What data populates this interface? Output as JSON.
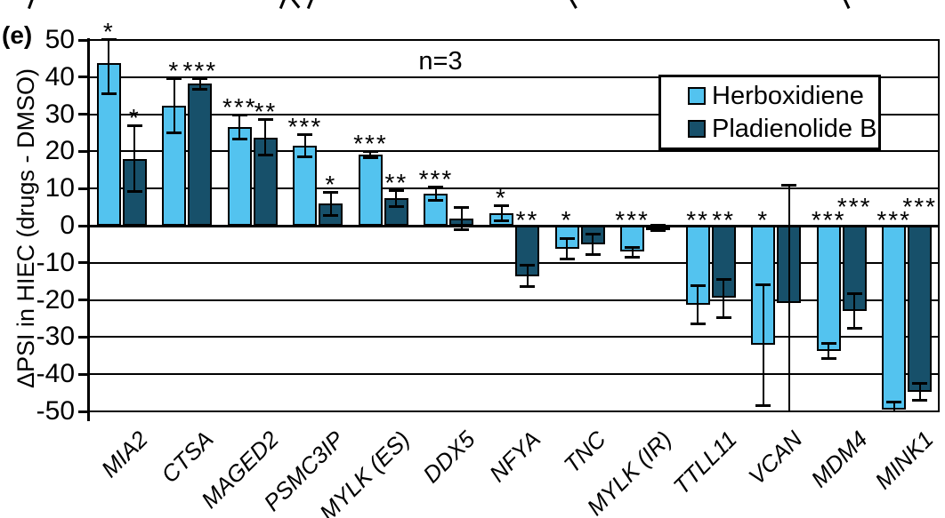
{
  "panel_label": "(e)",
  "annotation": "n=3",
  "y_axis": {
    "title": "ΔPSI in HIEC (drugs - DMSO)",
    "ticks": [
      50,
      40,
      30,
      20,
      10,
      0,
      -10,
      -20,
      -30,
      -40,
      -50
    ]
  },
  "legend": {
    "position": "top-right",
    "items": [
      {
        "label": "Herboxidiene",
        "color": "#53C3EF"
      },
      {
        "label": "Pladienolide B",
        "color": "#17506A"
      }
    ]
  },
  "chart_data": {
    "type": "bar",
    "title": "",
    "xlabel": "",
    "ylabel": "ΔPSI in HIEC (drugs - DMSO)",
    "ylim": [
      -50,
      50
    ],
    "grid": true,
    "legend_position": "top-right",
    "annotation": "n=3",
    "categories": [
      "MIA2",
      "CTSA",
      "MAGED2",
      "PSMC3IP",
      "MYLK (ES)",
      "DDX5",
      "NFYA",
      "TNC",
      "MYLK (IR)",
      "TTLL11",
      "VCAN",
      "MDM4",
      "MINK1"
    ],
    "series": [
      {
        "name": "Herboxidiene",
        "color": "#53C3EF",
        "values": [
          43.7,
          32.3,
          26.6,
          21.5,
          19.2,
          8.7,
          3.4,
          -6.2,
          -7.0,
          -21.2,
          -32.0,
          -33.8,
          -49.5
        ],
        "error_hi": [
          50.3,
          39.7,
          29.9,
          24.6,
          20.1,
          10.6,
          5.6,
          -3.4,
          -5.8,
          -16.0,
          -15.8,
          -31.6,
          -47.3
        ],
        "error_lo": [
          35.5,
          25.0,
          23.2,
          18.5,
          18.2,
          6.8,
          1.2,
          -9.0,
          -8.5,
          -26.6,
          -48.6,
          -35.8,
          -50.0
        ],
        "stars": [
          "*",
          "*",
          "***",
          "***",
          "***",
          "***",
          "*",
          "*",
          "***",
          "**",
          "*",
          "***",
          "***"
        ],
        "star_raised": [
          0,
          0,
          0,
          0,
          0,
          0,
          0,
          0,
          0,
          0,
          0,
          0,
          0
        ]
      },
      {
        "name": "Pladienolide B",
        "color": "#17506A",
        "values": [
          18.0,
          38.3,
          23.8,
          5.9,
          7.3,
          2.0,
          -13.6,
          -5.0,
          -0.6,
          -19.4,
          -20.9,
          -23.0,
          -44.8
        ],
        "error_hi": [
          27.0,
          39.8,
          28.7,
          9.2,
          9.5,
          5.0,
          -10.6,
          -2.2,
          0.2,
          -14.4,
          10.9,
          -18.2,
          -42.4
        ],
        "error_lo": [
          9.0,
          36.6,
          18.8,
          2.7,
          5.1,
          -1.2,
          -16.6,
          -7.8,
          -1.4,
          -24.9,
          -50.0,
          -27.8,
          -47.2
        ],
        "stars": [
          "*",
          "***",
          "**",
          "*",
          "**",
          "",
          "**",
          "",
          "",
          "**",
          "",
          "***",
          "***"
        ],
        "star_raised": [
          0,
          0,
          0,
          0,
          0,
          0,
          0,
          0,
          0,
          0,
          0,
          1,
          1
        ]
      }
    ]
  },
  "top_fragments": [
    {
      "x": 33,
      "r": 20
    },
    {
      "x": 316,
      "r": 22
    },
    {
      "x": 331,
      "r": -38
    },
    {
      "x": 347,
      "r": 22
    },
    {
      "x": 643,
      "r": -30
    },
    {
      "x": 950,
      "r": -25
    }
  ]
}
